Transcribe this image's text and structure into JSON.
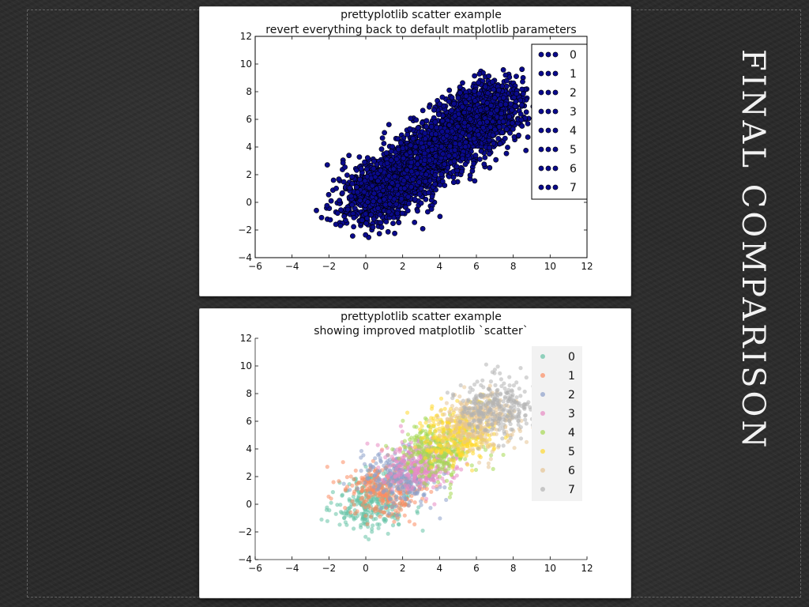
{
  "slide": {
    "title": "FINAL COMPARISON"
  },
  "colors": {
    "default_marker": "#0a0a8c",
    "default_edge": "#000000",
    "palette": [
      "#66c2a5",
      "#fc8d62",
      "#8da0cb",
      "#e78ac3",
      "#a6d854",
      "#ffd92f",
      "#e5c494",
      "#b3b3b3"
    ]
  },
  "chart_data": [
    {
      "type": "scatter",
      "style": "default-matplotlib",
      "title": "prettyplotlib  scatter  example",
      "subtitle": "revert everything back to default matplotlib parameters",
      "xlim": [
        -6,
        12
      ],
      "ylim": [
        -4,
        12
      ],
      "xticks": [
        -6,
        -4,
        -2,
        0,
        2,
        4,
        6,
        8,
        10,
        12
      ],
      "yticks": [
        -4,
        -2,
        0,
        2,
        4,
        6,
        8,
        10,
        12
      ],
      "grid": false,
      "legend": {
        "placement": "top-right",
        "framed": true
      },
      "series": [
        {
          "name": "0",
          "center": [
            0.2,
            0.0
          ],
          "points": 1000
        },
        {
          "name": "1",
          "center": [
            1.0,
            1.0
          ],
          "points": 1000
        },
        {
          "name": "2",
          "center": [
            2.0,
            2.0
          ],
          "points": 1000
        },
        {
          "name": "3",
          "center": [
            3.0,
            3.0
          ],
          "points": 1000
        },
        {
          "name": "4",
          "center": [
            4.0,
            4.0
          ],
          "points": 1000
        },
        {
          "name": "5",
          "center": [
            5.0,
            5.0
          ],
          "points": 1000
        },
        {
          "name": "6",
          "center": [
            6.0,
            6.0
          ],
          "points": 1000
        },
        {
          "name": "7",
          "center": [
            7.0,
            7.0
          ],
          "points": 1000
        }
      ]
    },
    {
      "type": "scatter",
      "style": "prettyplotlib",
      "title": "prettyplotlib  scatter  example",
      "subtitle": "showing improved matplotlib `scatter`",
      "xlim": [
        -6,
        12
      ],
      "ylim": [
        -4,
        12
      ],
      "xticks": [
        -6,
        -4,
        -2,
        0,
        2,
        4,
        6,
        8,
        10,
        12
      ],
      "yticks": [
        -4,
        -2,
        0,
        2,
        4,
        6,
        8,
        10,
        12
      ],
      "grid": false,
      "legend": {
        "placement": "top-right",
        "framed": false,
        "background": "#f2f2f2"
      },
      "series": [
        {
          "name": "0",
          "center": [
            0.2,
            0.0
          ],
          "points": 1000,
          "color": "#66c2a5"
        },
        {
          "name": "1",
          "center": [
            1.0,
            1.0
          ],
          "points": 1000,
          "color": "#fc8d62"
        },
        {
          "name": "2",
          "center": [
            2.0,
            2.0
          ],
          "points": 1000,
          "color": "#8da0cb"
        },
        {
          "name": "3",
          "center": [
            3.0,
            3.0
          ],
          "points": 1000,
          "color": "#e78ac3"
        },
        {
          "name": "4",
          "center": [
            4.0,
            4.0
          ],
          "points": 1000,
          "color": "#a6d854"
        },
        {
          "name": "5",
          "center": [
            5.0,
            5.0
          ],
          "points": 1000,
          "color": "#ffd92f"
        },
        {
          "name": "6",
          "center": [
            6.0,
            6.0
          ],
          "points": 1000,
          "color": "#e5c494"
        },
        {
          "name": "7",
          "center": [
            7.0,
            7.0
          ],
          "points": 1000,
          "color": "#b3b3b3"
        }
      ]
    }
  ]
}
